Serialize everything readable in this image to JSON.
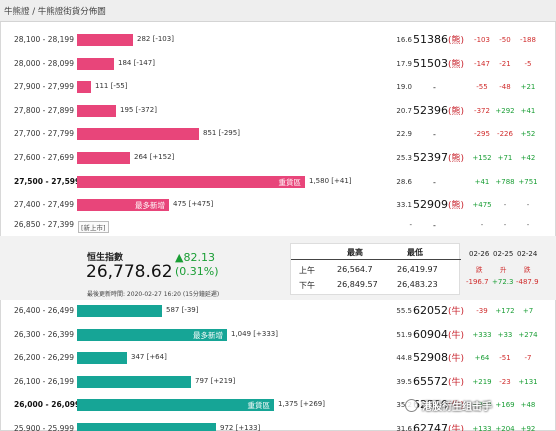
{
  "title": "牛熊證 / 牛熊證街貨分佈圖",
  "top_rows": [
    {
      "range": "28,100 - 28,199",
      "bar": 56,
      "amount": "282 [-103]",
      "pct": "16.6",
      "code": "51386",
      "tag": "(熊)",
      "d1": "-103",
      "d2": "-50",
      "d3": "-188",
      "c1": "neg",
      "c2": "neg",
      "c3": "neg"
    },
    {
      "range": "28,000 - 28,099",
      "bar": 37,
      "amount": "184 [-147]",
      "pct": "17.9",
      "code": "51503",
      "tag": "(熊)",
      "d1": "-147",
      "d2": "-21",
      "d3": "-5",
      "c1": "neg",
      "c2": "neg",
      "c3": "neg"
    },
    {
      "range": "27,900 - 27,999",
      "bar": 14,
      "amount": "111 [-55]",
      "pct": "19.0",
      "code": "-",
      "tag": "",
      "d1": "-55",
      "d2": "-48",
      "d3": "+21",
      "c1": "neg",
      "c2": "neg",
      "c3": "pos"
    },
    {
      "range": "27,800 - 27,899",
      "bar": 39,
      "amount": "195 [-372]",
      "pct": "20.7",
      "code": "52396",
      "tag": "(熊)",
      "d1": "-372",
      "d2": "+292",
      "d3": "+41",
      "c1": "neg",
      "c2": "pos",
      "c3": "pos"
    },
    {
      "range": "27,700 - 27,799",
      "bar": 122,
      "amount": "851 [-295]",
      "pct": "22.9",
      "code": "-",
      "tag": "",
      "d1": "-295",
      "d2": "-226",
      "d3": "+52",
      "c1": "neg",
      "c2": "neg",
      "c3": "pos"
    },
    {
      "range": "27,600 - 27,699",
      "bar": 53,
      "amount": "264 [+152]",
      "pct": "25.3",
      "code": "52397",
      "tag": "(熊)",
      "d1": "+152",
      "d2": "+71",
      "d3": "+42",
      "c1": "pos",
      "c2": "pos",
      "c3": "pos"
    },
    {
      "range": "27,500 - 27,599",
      "bar": 228,
      "amount": "1,580 [+41]",
      "inlabel": "重貨區",
      "pct": "28.6",
      "code": "-",
      "tag": "",
      "d1": "+41",
      "d2": "+788",
      "d3": "+751",
      "c1": "pos",
      "c2": "pos",
      "c3": "pos",
      "bold": true
    },
    {
      "range": "27,400 - 27,499",
      "bar": 92,
      "amount": "475 [+475]",
      "inlabel": "最多新增",
      "pct": "33.1",
      "code": "52909",
      "tag": "(熊)",
      "d1": "+475",
      "d2": "-",
      "d3": "-",
      "c1": "pos",
      "c2": "dash",
      "c3": "dash"
    }
  ],
  "new_row": {
    "range": "26,850 - 27,399",
    "tag": "[新上市]",
    "pct": "-",
    "code": "-",
    "d1": "-",
    "d2": "-",
    "d3": "-"
  },
  "index": {
    "name": "恒生指數",
    "value": "26,778.62",
    "change": "▲82.13",
    "pct": "(0.31%)",
    "updated": "最後更新時間: 2020-02-27 16:20 (15分鐘延遲)",
    "hl_header_high": "最高",
    "hl_header_low": "最低",
    "am_label": "上午",
    "am_high": "26,564.7",
    "am_low": "26,419.97",
    "pm_label": "下午",
    "pm_high": "26,849.57",
    "pm_low": "26,483.23",
    "dates": [
      "02-26",
      "02-25",
      "02-24"
    ],
    "date_labels": [
      "跌",
      "升",
      "跌"
    ],
    "date_values": [
      "-196.7",
      "+72.3",
      "-487.9"
    ],
    "date_colors": [
      "neg",
      "pos",
      "neg"
    ]
  },
  "bottom_rows": [
    {
      "range": "26,400 - 26,499",
      "bar": 85,
      "amount": "587 [-39]",
      "pct": "55.5",
      "code": "62052",
      "tag": "(牛)",
      "d1": "-39",
      "d2": "+172",
      "d3": "+7",
      "c1": "neg",
      "c2": "pos",
      "c3": "pos"
    },
    {
      "range": "26,300 - 26,399",
      "bar": 150,
      "amount": "1,049 [+333]",
      "inlabel": "最多新增",
      "pct": "51.9",
      "code": "60904",
      "tag": "(牛)",
      "d1": "+333",
      "d2": "+33",
      "d3": "+274",
      "c1": "pos",
      "c2": "pos",
      "c3": "pos"
    },
    {
      "range": "26,200 - 26,299",
      "bar": 50,
      "amount": "347 [+64]",
      "pct": "44.8",
      "code": "52908",
      "tag": "(牛)",
      "d1": "+64",
      "d2": "-51",
      "d3": "-7",
      "c1": "pos",
      "c2": "neg",
      "c3": "neg"
    },
    {
      "range": "26,100 - 26,199",
      "bar": 114,
      "amount": "797 [+219]",
      "pct": "39.5",
      "code": "65572",
      "tag": "(牛)",
      "d1": "+219",
      "d2": "-23",
      "d3": "+131",
      "c1": "pos",
      "c2": "neg",
      "c3": "pos"
    },
    {
      "range": "26,000 - 26,099",
      "bar": 197,
      "amount": "1,375 [+269]",
      "inlabel": "重貨區",
      "pct": "35.2",
      "code": "62590",
      "tag": "(牛)",
      "d1": "+269",
      "d2": "+169",
      "d3": "+48",
      "c1": "pos",
      "c2": "pos",
      "c3": "pos",
      "bold": true
    },
    {
      "range": "25,900 - 25,999",
      "bar": 139,
      "amount": "972 [+133]",
      "pct": "31.6",
      "code": "62747",
      "tag": "(牛)",
      "d1": "+133",
      "d2": "+204",
      "d3": "+92",
      "c1": "pos",
      "c2": "pos",
      "c3": "pos"
    }
  ],
  "watermark": "港股衍生组击手"
}
